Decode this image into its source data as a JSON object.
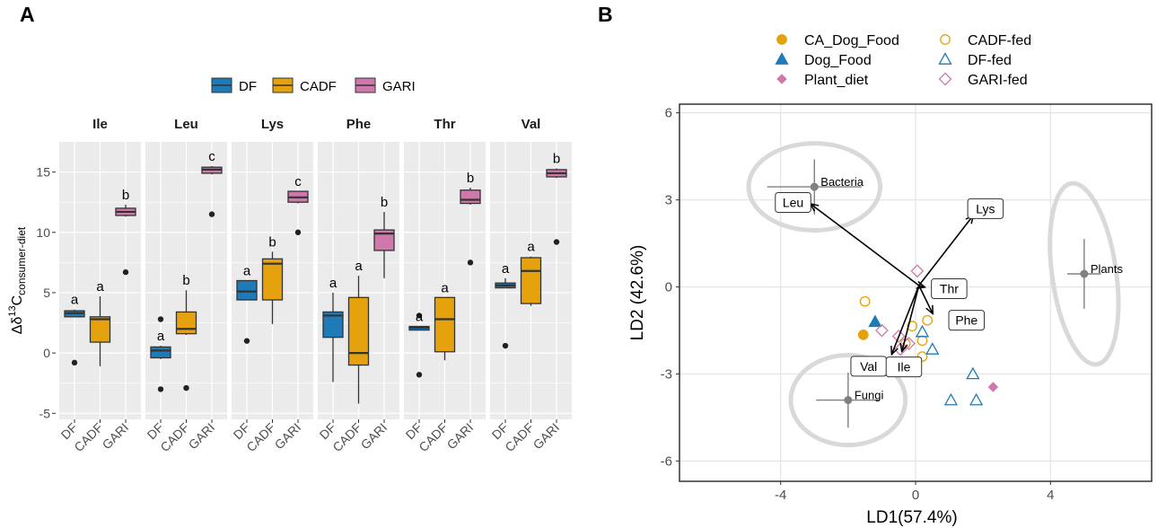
{
  "panel_labels": {
    "a": "A",
    "b": "B"
  },
  "colors": {
    "DF": "#1f7ab8",
    "CADF": "#e5a20e",
    "GARI": "#cf78ab",
    "strip_bg": "#ffffff",
    "panel_bg": "#ebebeb",
    "grid": "#ffffff",
    "outlier": "#222222",
    "pca_grid": "#e6e6e6",
    "ellipse": "#d9d9d9",
    "centroid": "#808080"
  },
  "chart_data": [
    {
      "type": "boxplot",
      "panel": "A",
      "ylabel_main": "Δδ",
      "ylabel_sup": "13",
      "ylabel_c": "C",
      "ylabel_sub": "consumer-diet",
      "ylim": [
        -5.5,
        17.5
      ],
      "yticks": [
        -5,
        0,
        5,
        10,
        15
      ],
      "legend": [
        {
          "key": "DF",
          "label": "DF"
        },
        {
          "key": "CADF",
          "label": "CADF"
        },
        {
          "key": "GARI",
          "label": "GARI"
        }
      ],
      "categories": [
        "DF",
        "CADF",
        "GARI"
      ],
      "facets": [
        {
          "name": "Ile",
          "boxes": [
            {
              "group": "DF",
              "q1": 3.0,
              "median": 3.3,
              "q3": 3.5,
              "lo": 3.0,
              "hi": 3.6,
              "outliers": [
                -0.8
              ],
              "letter": "a"
            },
            {
              "group": "CADF",
              "q1": 0.9,
              "median": 2.8,
              "q3": 3.0,
              "lo": -1.1,
              "hi": 4.7,
              "outliers": [],
              "letter": "a"
            },
            {
              "group": "GARI",
              "q1": 11.4,
              "median": 11.7,
              "q3": 12.0,
              "lo": 11.3,
              "hi": 12.3,
              "outliers": [
                6.7
              ],
              "letter": "b"
            }
          ]
        },
        {
          "name": "Leu",
          "boxes": [
            {
              "group": "DF",
              "q1": -0.4,
              "median": 0.2,
              "q3": 0.5,
              "lo": -0.5,
              "hi": 0.6,
              "outliers": [
                2.8,
                -3.0
              ],
              "letter": "a"
            },
            {
              "group": "CADF",
              "q1": 1.6,
              "median": 2.0,
              "q3": 3.4,
              "lo": 1.5,
              "hi": 5.2,
              "outliers": [
                -2.9
              ],
              "letter": "b"
            },
            {
              "group": "GARI",
              "q1": 14.9,
              "median": 15.2,
              "q3": 15.4,
              "lo": 14.8,
              "hi": 15.5,
              "outliers": [
                11.5
              ],
              "letter": "c"
            }
          ]
        },
        {
          "name": "Lys",
          "boxes": [
            {
              "group": "DF",
              "q1": 4.4,
              "median": 5.1,
              "q3": 6.0,
              "lo": 4.4,
              "hi": 6.0,
              "outliers": [
                1.0
              ],
              "letter": "a"
            },
            {
              "group": "CADF",
              "q1": 4.4,
              "median": 7.4,
              "q3": 7.8,
              "lo": 2.4,
              "hi": 8.4,
              "outliers": [],
              "letter": "b"
            },
            {
              "group": "GARI",
              "q1": 12.5,
              "median": 12.9,
              "q3": 13.4,
              "lo": 12.4,
              "hi": 13.4,
              "outliers": [
                10.0
              ],
              "letter": "c"
            }
          ]
        },
        {
          "name": "Phe",
          "boxes": [
            {
              "group": "DF",
              "q1": 1.3,
              "median": 3.1,
              "q3": 3.4,
              "lo": -2.4,
              "hi": 5.0,
              "outliers": [],
              "letter": "a"
            },
            {
              "group": "CADF",
              "q1": -1.0,
              "median": 0.0,
              "q3": 4.6,
              "lo": -4.2,
              "hi": 6.4,
              "outliers": [],
              "letter": "a"
            },
            {
              "group": "GARI",
              "q1": 8.5,
              "median": 9.9,
              "q3": 10.2,
              "lo": 6.2,
              "hi": 11.7,
              "outliers": [],
              "letter": "b"
            }
          ]
        },
        {
          "name": "Thr",
          "boxes": [
            {
              "group": "DF",
              "q1": 1.9,
              "median": 2.1,
              "q3": 2.2,
              "lo": 1.9,
              "hi": 2.2,
              "outliers": [
                3.1,
                -1.8
              ],
              "letter": "a"
            },
            {
              "group": "CADF",
              "q1": 0.1,
              "median": 2.8,
              "q3": 4.6,
              "lo": -0.6,
              "hi": 4.6,
              "outliers": [],
              "letter": "a"
            },
            {
              "group": "GARI",
              "q1": 12.4,
              "median": 12.7,
              "q3": 13.5,
              "lo": 12.3,
              "hi": 13.7,
              "outliers": [
                7.5
              ],
              "letter": "b"
            }
          ]
        },
        {
          "name": "Val",
          "boxes": [
            {
              "group": "DF",
              "q1": 5.4,
              "median": 5.6,
              "q3": 5.8,
              "lo": 5.4,
              "hi": 6.2,
              "outliers": [
                0.6
              ],
              "letter": "a"
            },
            {
              "group": "CADF",
              "q1": 4.1,
              "median": 6.8,
              "q3": 7.9,
              "lo": 3.9,
              "hi": 8.0,
              "outliers": [],
              "letter": "a"
            },
            {
              "group": "GARI",
              "q1": 14.6,
              "median": 14.9,
              "q3": 15.2,
              "lo": 14.5,
              "hi": 15.3,
              "outliers": [
                9.2
              ],
              "letter": "b"
            }
          ]
        }
      ]
    },
    {
      "type": "scatter",
      "panel": "B",
      "xlabel": "LD1(57.4%)",
      "ylabel": "LD2 (42.6%)",
      "xlim": [
        -7.0,
        7.0
      ],
      "ylim": [
        -6.7,
        6.3
      ],
      "xticks": [
        -4,
        0,
        4
      ],
      "yticks": [
        -6,
        -3,
        0,
        3,
        6
      ],
      "legend": [
        {
          "label": "CA_Dog_Food",
          "shape": "circle",
          "filled": true,
          "color": "#e5a20e"
        },
        {
          "label": "Dog_Food",
          "shape": "triangle",
          "filled": true,
          "color": "#1f7ab8"
        },
        {
          "label": "Plant_diet",
          "shape": "diamond",
          "filled": true,
          "color": "#cf78ab"
        },
        {
          "label": "CADF-fed",
          "shape": "circle",
          "filled": false,
          "color": "#e5a20e"
        },
        {
          "label": "DF-fed",
          "shape": "triangle",
          "filled": false,
          "color": "#1f7ab8"
        },
        {
          "label": "GARI-fed",
          "shape": "diamond",
          "filled": false,
          "color": "#cf78ab"
        }
      ],
      "groups": [
        {
          "name": "Bacteria",
          "cx": -3.0,
          "cy": 3.45,
          "xerr": 1.4,
          "yerr": 0.95,
          "ell_rx": 1.95,
          "ell_ry": 1.5,
          "ell_angle": 0
        },
        {
          "name": "Fungi",
          "cx": -2.0,
          "cy": -3.9,
          "xerr": 0.95,
          "yerr": 0.95,
          "ell_rx": 1.7,
          "ell_ry": 1.55,
          "ell_angle": 0
        },
        {
          "name": "Plants",
          "cx": 5.0,
          "cy": 0.45,
          "xerr": 0.5,
          "yerr": 1.2,
          "ell_rx": 0.95,
          "ell_ry": 3.15,
          "ell_angle": -8
        }
      ],
      "arrows": [
        {
          "label": "Leu",
          "x": -3.1,
          "y": 2.85
        },
        {
          "label": "Lys",
          "x": 1.7,
          "y": 2.45
        },
        {
          "label": "Thr",
          "x": 0.25,
          "y": 0.0
        },
        {
          "label": "Phe",
          "x": 0.5,
          "y": -0.9
        },
        {
          "label": "Val",
          "x": -0.7,
          "y": -2.3
        },
        {
          "label": "Ile",
          "x": -0.4,
          "y": -2.2
        }
      ],
      "points": [
        {
          "x": -1.55,
          "y": -1.65,
          "shape": "circle",
          "filled": true,
          "color": "#e5a20e"
        },
        {
          "x": -1.2,
          "y": -1.2,
          "shape": "triangle",
          "filled": true,
          "color": "#1f7ab8"
        },
        {
          "x": 2.3,
          "y": -3.45,
          "shape": "diamond",
          "filled": true,
          "color": "#cf78ab"
        },
        {
          "x": -1.5,
          "y": -0.5,
          "shape": "circle",
          "filled": false,
          "color": "#e5a20e"
        },
        {
          "x": 0.35,
          "y": -1.15,
          "shape": "circle",
          "filled": false,
          "color": "#e5a20e"
        },
        {
          "x": -0.1,
          "y": -1.35,
          "shape": "circle",
          "filled": false,
          "color": "#e5a20e"
        },
        {
          "x": 0.2,
          "y": -1.85,
          "shape": "circle",
          "filled": false,
          "color": "#e5a20e"
        },
        {
          "x": -0.3,
          "y": -1.95,
          "shape": "circle",
          "filled": false,
          "color": "#e5a20e"
        },
        {
          "x": 0.2,
          "y": -2.4,
          "shape": "circle",
          "filled": false,
          "color": "#e5a20e"
        },
        {
          "x": 0.2,
          "y": -1.55,
          "shape": "triangle",
          "filled": false,
          "color": "#1f7ab8"
        },
        {
          "x": 0.5,
          "y": -2.15,
          "shape": "triangle",
          "filled": false,
          "color": "#1f7ab8"
        },
        {
          "x": 1.7,
          "y": -3.0,
          "shape": "triangle",
          "filled": false,
          "color": "#1f7ab8"
        },
        {
          "x": 1.05,
          "y": -3.9,
          "shape": "triangle",
          "filled": false,
          "color": "#1f7ab8"
        },
        {
          "x": 1.8,
          "y": -3.9,
          "shape": "triangle",
          "filled": false,
          "color": "#1f7ab8"
        },
        {
          "x": 0.05,
          "y": 0.55,
          "shape": "diamond",
          "filled": false,
          "color": "#cf78ab"
        },
        {
          "x": -1.0,
          "y": -1.5,
          "shape": "diamond",
          "filled": false,
          "color": "#cf78ab"
        },
        {
          "x": -0.5,
          "y": -1.7,
          "shape": "diamond",
          "filled": false,
          "color": "#cf78ab"
        },
        {
          "x": -0.2,
          "y": -1.95,
          "shape": "diamond",
          "filled": false,
          "color": "#cf78ab"
        },
        {
          "x": -0.45,
          "y": -2.15,
          "shape": "diamond",
          "filled": false,
          "color": "#cf78ab"
        }
      ]
    }
  ]
}
